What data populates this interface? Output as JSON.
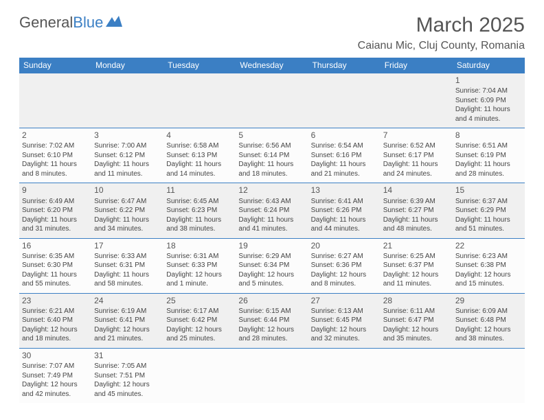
{
  "logo": {
    "text_a": "General",
    "text_b": "Blue"
  },
  "title": "March 2025",
  "location": "Caianu Mic, Cluj County, Romania",
  "colors": {
    "header_bg": "#3b7fc4",
    "header_text": "#ffffff",
    "row_odd_bg": "#f0f0f0",
    "row_even_bg": "#fcfcfc",
    "border": "#3b7fc4",
    "text": "#444444",
    "title_text": "#555555"
  },
  "columns": [
    "Sunday",
    "Monday",
    "Tuesday",
    "Wednesday",
    "Thursday",
    "Friday",
    "Saturday"
  ],
  "weeks": [
    [
      null,
      null,
      null,
      null,
      null,
      null,
      {
        "n": "1",
        "sr": "7:04 AM",
        "ss": "6:09 PM",
        "dl": "11 hours and 4 minutes."
      }
    ],
    [
      {
        "n": "2",
        "sr": "7:02 AM",
        "ss": "6:10 PM",
        "dl": "11 hours and 8 minutes."
      },
      {
        "n": "3",
        "sr": "7:00 AM",
        "ss": "6:12 PM",
        "dl": "11 hours and 11 minutes."
      },
      {
        "n": "4",
        "sr": "6:58 AM",
        "ss": "6:13 PM",
        "dl": "11 hours and 14 minutes."
      },
      {
        "n": "5",
        "sr": "6:56 AM",
        "ss": "6:14 PM",
        "dl": "11 hours and 18 minutes."
      },
      {
        "n": "6",
        "sr": "6:54 AM",
        "ss": "6:16 PM",
        "dl": "11 hours and 21 minutes."
      },
      {
        "n": "7",
        "sr": "6:52 AM",
        "ss": "6:17 PM",
        "dl": "11 hours and 24 minutes."
      },
      {
        "n": "8",
        "sr": "6:51 AM",
        "ss": "6:19 PM",
        "dl": "11 hours and 28 minutes."
      }
    ],
    [
      {
        "n": "9",
        "sr": "6:49 AM",
        "ss": "6:20 PM",
        "dl": "11 hours and 31 minutes."
      },
      {
        "n": "10",
        "sr": "6:47 AM",
        "ss": "6:22 PM",
        "dl": "11 hours and 34 minutes."
      },
      {
        "n": "11",
        "sr": "6:45 AM",
        "ss": "6:23 PM",
        "dl": "11 hours and 38 minutes."
      },
      {
        "n": "12",
        "sr": "6:43 AM",
        "ss": "6:24 PM",
        "dl": "11 hours and 41 minutes."
      },
      {
        "n": "13",
        "sr": "6:41 AM",
        "ss": "6:26 PM",
        "dl": "11 hours and 44 minutes."
      },
      {
        "n": "14",
        "sr": "6:39 AM",
        "ss": "6:27 PM",
        "dl": "11 hours and 48 minutes."
      },
      {
        "n": "15",
        "sr": "6:37 AM",
        "ss": "6:29 PM",
        "dl": "11 hours and 51 minutes."
      }
    ],
    [
      {
        "n": "16",
        "sr": "6:35 AM",
        "ss": "6:30 PM",
        "dl": "11 hours and 55 minutes."
      },
      {
        "n": "17",
        "sr": "6:33 AM",
        "ss": "6:31 PM",
        "dl": "11 hours and 58 minutes."
      },
      {
        "n": "18",
        "sr": "6:31 AM",
        "ss": "6:33 PM",
        "dl": "12 hours and 1 minute."
      },
      {
        "n": "19",
        "sr": "6:29 AM",
        "ss": "6:34 PM",
        "dl": "12 hours and 5 minutes."
      },
      {
        "n": "20",
        "sr": "6:27 AM",
        "ss": "6:36 PM",
        "dl": "12 hours and 8 minutes."
      },
      {
        "n": "21",
        "sr": "6:25 AM",
        "ss": "6:37 PM",
        "dl": "12 hours and 11 minutes."
      },
      {
        "n": "22",
        "sr": "6:23 AM",
        "ss": "6:38 PM",
        "dl": "12 hours and 15 minutes."
      }
    ],
    [
      {
        "n": "23",
        "sr": "6:21 AM",
        "ss": "6:40 PM",
        "dl": "12 hours and 18 minutes."
      },
      {
        "n": "24",
        "sr": "6:19 AM",
        "ss": "6:41 PM",
        "dl": "12 hours and 21 minutes."
      },
      {
        "n": "25",
        "sr": "6:17 AM",
        "ss": "6:42 PM",
        "dl": "12 hours and 25 minutes."
      },
      {
        "n": "26",
        "sr": "6:15 AM",
        "ss": "6:44 PM",
        "dl": "12 hours and 28 minutes."
      },
      {
        "n": "27",
        "sr": "6:13 AM",
        "ss": "6:45 PM",
        "dl": "12 hours and 32 minutes."
      },
      {
        "n": "28",
        "sr": "6:11 AM",
        "ss": "6:47 PM",
        "dl": "12 hours and 35 minutes."
      },
      {
        "n": "29",
        "sr": "6:09 AM",
        "ss": "6:48 PM",
        "dl": "12 hours and 38 minutes."
      }
    ],
    [
      {
        "n": "30",
        "sr": "7:07 AM",
        "ss": "7:49 PM",
        "dl": "12 hours and 42 minutes."
      },
      {
        "n": "31",
        "sr": "7:05 AM",
        "ss": "7:51 PM",
        "dl": "12 hours and 45 minutes."
      },
      null,
      null,
      null,
      null,
      null
    ]
  ],
  "labels": {
    "sunrise": "Sunrise: ",
    "sunset": "Sunset: ",
    "daylight": "Daylight: "
  }
}
